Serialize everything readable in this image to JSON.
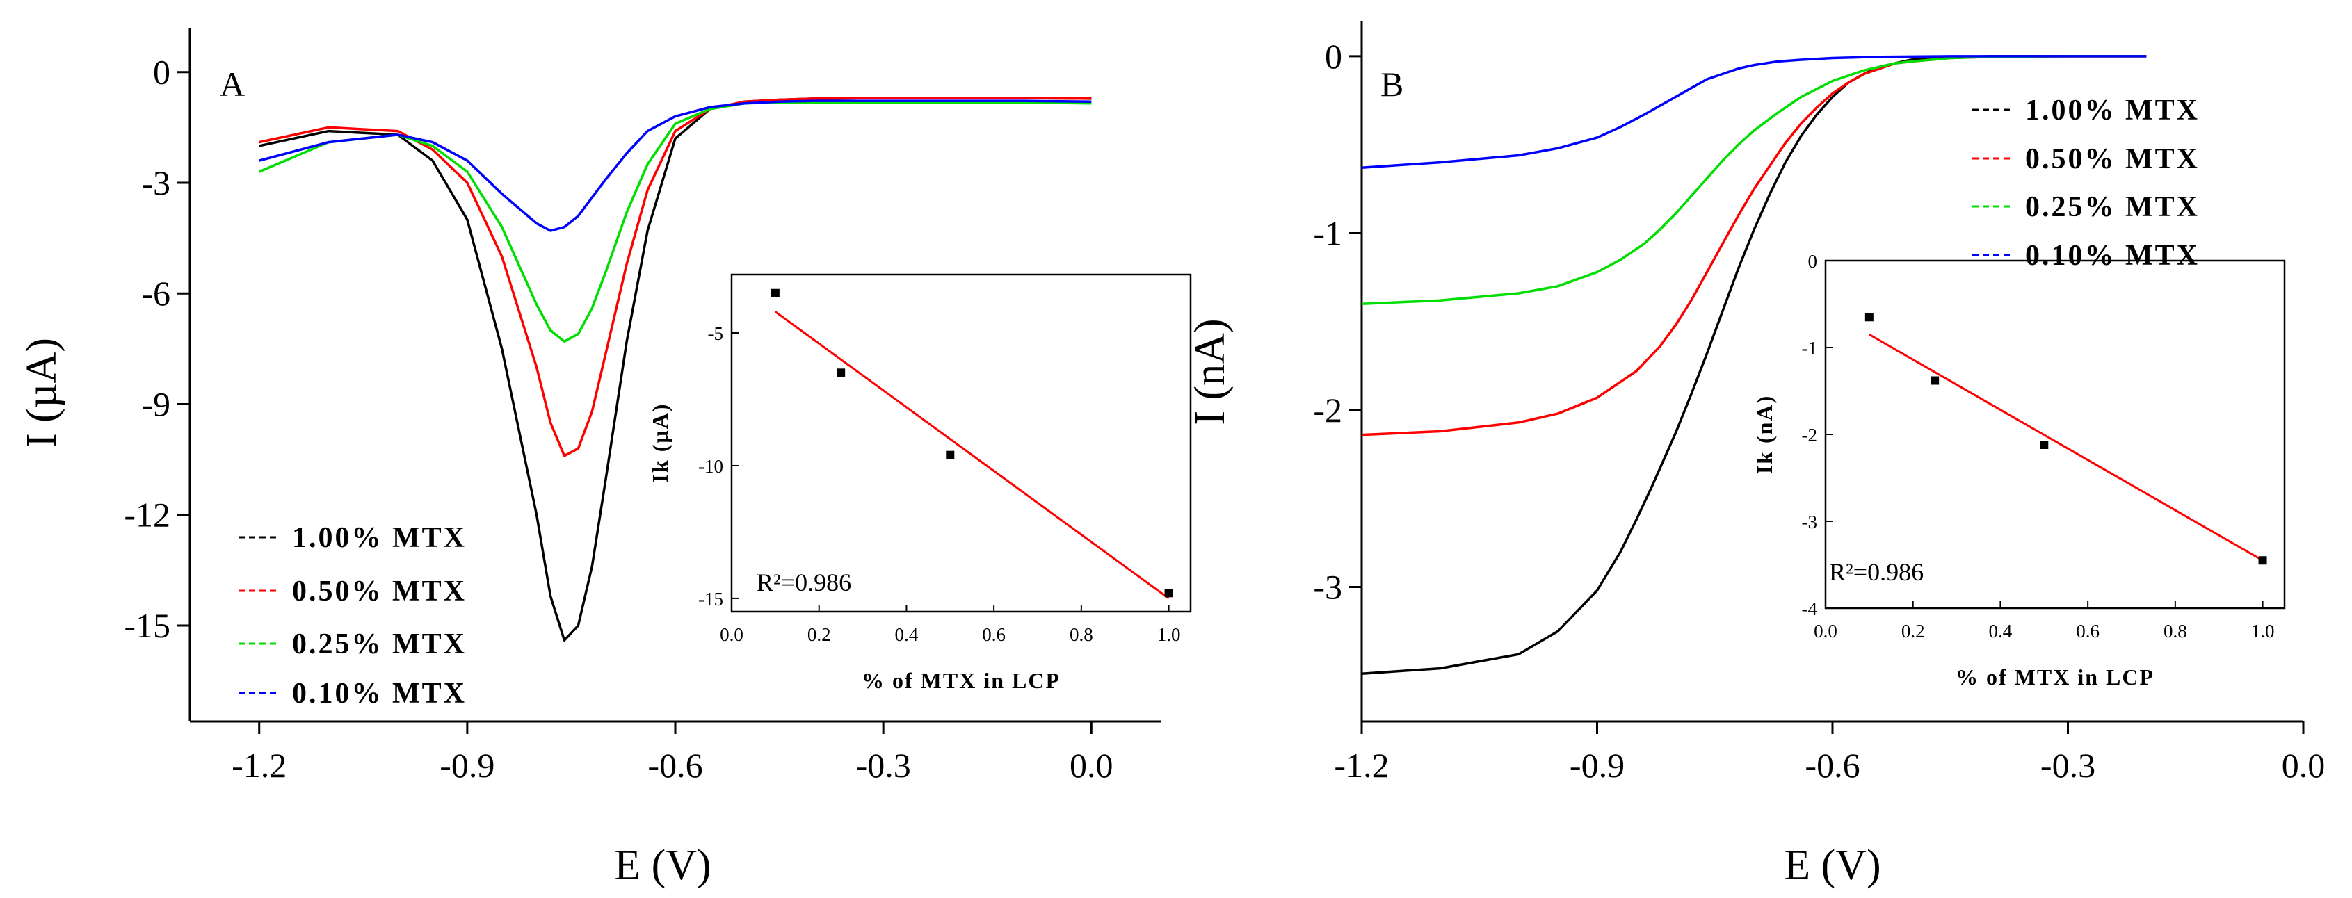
{
  "chart_data": [
    {
      "panel": "A",
      "type": "line",
      "xlabel": "E (V)",
      "ylabel": "I (µA)",
      "xlim": [
        -1.3,
        0.1
      ],
      "ylim": [
        -17.6,
        1.2
      ],
      "x_ticks": [
        -1.2,
        -0.9,
        -0.6,
        -0.3,
        0.0
      ],
      "x_tick_labels": [
        "-1.2",
        "-0.9",
        "-0.6",
        "-0.3",
        "0.0"
      ],
      "y_ticks": [
        0,
        -3,
        -6,
        -9,
        -12,
        -15
      ],
      "y_tick_labels": [
        "0",
        "-3",
        "-6",
        "-9",
        "-12",
        "-15"
      ],
      "legend_position": "bottom-left",
      "series": [
        {
          "name": "1.00% MTX",
          "color": "#000000",
          "x": [
            -1.2,
            -1.1,
            -1.0,
            -0.95,
            -0.9,
            -0.85,
            -0.8,
            -0.78,
            -0.76,
            -0.74,
            -0.72,
            -0.7,
            -0.67,
            -0.64,
            -0.6,
            -0.55,
            -0.5,
            -0.45,
            -0.4,
            -0.3,
            -0.2,
            -0.1,
            0.0
          ],
          "values": [
            -2.0,
            -1.6,
            -1.7,
            -2.4,
            -4.0,
            -7.5,
            -12.0,
            -14.2,
            -15.4,
            -15.0,
            -13.4,
            -11.0,
            -7.3,
            -4.3,
            -1.8,
            -1.0,
            -0.8,
            -0.75,
            -0.72,
            -0.7,
            -0.7,
            -0.7,
            -0.72
          ]
        },
        {
          "name": "0.50% MTX",
          "color": "#ff0000",
          "x": [
            -1.2,
            -1.1,
            -1.0,
            -0.95,
            -0.9,
            -0.85,
            -0.8,
            -0.78,
            -0.76,
            -0.74,
            -0.72,
            -0.7,
            -0.67,
            -0.64,
            -0.6,
            -0.55,
            -0.5,
            -0.45,
            -0.4,
            -0.3,
            -0.2,
            -0.1,
            0.0
          ],
          "values": [
            -1.9,
            -1.5,
            -1.6,
            -2.1,
            -3.0,
            -5.0,
            -8.0,
            -9.5,
            -10.4,
            -10.2,
            -9.2,
            -7.6,
            -5.2,
            -3.2,
            -1.6,
            -1.0,
            -0.8,
            -0.75,
            -0.72,
            -0.7,
            -0.7,
            -0.7,
            -0.72
          ]
        },
        {
          "name": "0.25% MTX",
          "color": "#00dd00",
          "x": [
            -1.2,
            -1.1,
            -1.0,
            -0.95,
            -0.9,
            -0.85,
            -0.8,
            -0.78,
            -0.76,
            -0.74,
            -0.72,
            -0.7,
            -0.67,
            -0.64,
            -0.6,
            -0.55,
            -0.5,
            -0.45,
            -0.4,
            -0.3,
            -0.2,
            -0.1,
            0.0
          ],
          "values": [
            -2.7,
            -1.9,
            -1.7,
            -2.0,
            -2.7,
            -4.2,
            -6.3,
            -7.0,
            -7.3,
            -7.1,
            -6.4,
            -5.4,
            -3.8,
            -2.5,
            -1.4,
            -1.0,
            -0.85,
            -0.82,
            -0.82,
            -0.82,
            -0.82,
            -0.82,
            -0.85
          ]
        },
        {
          "name": "0.10% MTX",
          "color": "#0000ff",
          "x": [
            -1.2,
            -1.1,
            -1.0,
            -0.95,
            -0.9,
            -0.85,
            -0.8,
            -0.78,
            -0.76,
            -0.74,
            -0.72,
            -0.7,
            -0.67,
            -0.64,
            -0.6,
            -0.55,
            -0.5,
            -0.45,
            -0.4,
            -0.3,
            -0.2,
            -0.1,
            0.0
          ],
          "values": [
            -2.4,
            -1.9,
            -1.7,
            -1.9,
            -2.4,
            -3.3,
            -4.1,
            -4.3,
            -4.2,
            -3.9,
            -3.4,
            -2.9,
            -2.2,
            -1.6,
            -1.2,
            -0.95,
            -0.85,
            -0.8,
            -0.78,
            -0.78,
            -0.78,
            -0.78,
            -0.8
          ]
        }
      ],
      "inset": {
        "type": "scatter",
        "xlabel": "% of MTX in LCP",
        "ylabel": "Ik (µA)",
        "xlim": [
          0.0,
          1.05
        ],
        "ylim": [
          -15.5,
          -2.8
        ],
        "x_ticks": [
          0.0,
          0.2,
          0.4,
          0.6,
          0.8,
          1.0
        ],
        "x_tick_labels": [
          "0.0",
          "0.2",
          "0.4",
          "0.6",
          "0.8",
          "1.0"
        ],
        "y_ticks": [
          -5,
          -10,
          -15
        ],
        "y_tick_labels": [
          "-5",
          "-10",
          "-15"
        ],
        "points": {
          "x": [
            0.1,
            0.25,
            0.5,
            1.0
          ],
          "y": [
            -3.5,
            -6.5,
            -9.6,
            -14.8
          ]
        },
        "fit": {
          "x": [
            0.1,
            1.0
          ],
          "y": [
            -4.2,
            -15.0
          ],
          "color": "#ff0000"
        },
        "annotation": "R²=0.986"
      }
    },
    {
      "panel": "B",
      "type": "line",
      "xlabel": "E (V)",
      "ylabel": "I (nA)",
      "xlim": [
        -1.2,
        0.0
      ],
      "ylim": [
        -3.76,
        0.2
      ],
      "x_ticks": [
        -1.2,
        -0.9,
        -0.6,
        -0.3,
        0.0
      ],
      "x_tick_labels": [
        "-1.2",
        "-0.9",
        "-0.6",
        "-0.3",
        "0.0"
      ],
      "y_ticks": [
        0,
        -1,
        -2,
        -3
      ],
      "y_tick_labels": [
        "0",
        "-1",
        "-2",
        "-3"
      ],
      "legend_position": "top-right",
      "series": [
        {
          "name": "1.00% MTX",
          "color": "#000000",
          "x": [
            -1.2,
            -1.1,
            -1.0,
            -0.95,
            -0.9,
            -0.87,
            -0.85,
            -0.83,
            -0.8,
            -0.78,
            -0.76,
            -0.74,
            -0.72,
            -0.7,
            -0.68,
            -0.66,
            -0.64,
            -0.62,
            -0.6,
            -0.58,
            -0.56,
            -0.54,
            -0.52,
            -0.5,
            -0.45,
            -0.4,
            -0.3,
            -0.2
          ],
          "values": [
            -3.49,
            -3.46,
            -3.38,
            -3.25,
            -3.02,
            -2.8,
            -2.62,
            -2.43,
            -2.13,
            -1.91,
            -1.68,
            -1.44,
            -1.2,
            -0.98,
            -0.78,
            -0.6,
            -0.45,
            -0.33,
            -0.23,
            -0.15,
            -0.1,
            -0.06,
            -0.04,
            -0.02,
            -0.005,
            0.0,
            0.0,
            0.0
          ]
        },
        {
          "name": "0.50% MTX",
          "color": "#ff0000",
          "x": [
            -1.2,
            -1.1,
            -1.0,
            -0.95,
            -0.9,
            -0.85,
            -0.82,
            -0.8,
            -0.78,
            -0.76,
            -0.74,
            -0.72,
            -0.7,
            -0.68,
            -0.66,
            -0.64,
            -0.62,
            -0.6,
            -0.58,
            -0.56,
            -0.54,
            -0.52,
            -0.5,
            -0.45,
            -0.4,
            -0.3,
            -0.2
          ],
          "values": [
            -2.14,
            -2.12,
            -2.07,
            -2.02,
            -1.93,
            -1.78,
            -1.64,
            -1.52,
            -1.38,
            -1.22,
            -1.06,
            -0.9,
            -0.75,
            -0.62,
            -0.49,
            -0.38,
            -0.29,
            -0.21,
            -0.15,
            -0.1,
            -0.07,
            -0.04,
            -0.03,
            -0.01,
            -0.003,
            0.0,
            0.0
          ]
        },
        {
          "name": "0.25% MTX",
          "color": "#00dd00",
          "x": [
            -1.2,
            -1.1,
            -1.0,
            -0.95,
            -0.9,
            -0.87,
            -0.84,
            -0.82,
            -0.8,
            -0.78,
            -0.76,
            -0.74,
            -0.72,
            -0.7,
            -0.67,
            -0.64,
            -0.6,
            -0.56,
            -0.52,
            -0.5,
            -0.45,
            -0.4,
            -0.3,
            -0.2
          ],
          "values": [
            -1.4,
            -1.38,
            -1.34,
            -1.3,
            -1.22,
            -1.15,
            -1.06,
            -0.98,
            -0.89,
            -0.79,
            -0.69,
            -0.59,
            -0.5,
            -0.42,
            -0.32,
            -0.23,
            -0.14,
            -0.08,
            -0.04,
            -0.03,
            -0.01,
            -0.003,
            0.0,
            0.0
          ]
        },
        {
          "name": "0.10% MTX",
          "color": "#0000ff",
          "x": [
            -1.2,
            -1.1,
            -1.0,
            -0.95,
            -0.9,
            -0.87,
            -0.84,
            -0.82,
            -0.8,
            -0.78,
            -0.76,
            -0.74,
            -0.72,
            -0.7,
            -0.67,
            -0.64,
            -0.6,
            -0.55,
            -0.5,
            -0.45,
            -0.4,
            -0.3,
            -0.2
          ],
          "values": [
            -0.63,
            -0.6,
            -0.56,
            -0.52,
            -0.46,
            -0.4,
            -0.33,
            -0.28,
            -0.23,
            -0.18,
            -0.13,
            -0.1,
            -0.07,
            -0.05,
            -0.03,
            -0.02,
            -0.01,
            -0.004,
            -0.002,
            0.0,
            0.0,
            0.0,
            0.0
          ]
        }
      ],
      "inset": {
        "type": "scatter",
        "xlabel": "% of MTX in LCP",
        "ylabel": "Ik (nA)",
        "xlim": [
          0.0,
          1.05
        ],
        "ylim": [
          -4.0,
          0.0
        ],
        "x_ticks": [
          0.0,
          0.2,
          0.4,
          0.6,
          0.8,
          1.0
        ],
        "x_tick_labels": [
          "0.0",
          "0.2",
          "0.4",
          "0.6",
          "0.8",
          "1.0"
        ],
        "y_ticks": [
          0,
          -1,
          -2,
          -3,
          -4
        ],
        "y_tick_labels": [
          "0",
          "-1",
          "-2",
          "-3",
          "-4"
        ],
        "points": {
          "x": [
            0.1,
            0.25,
            0.5,
            1.0
          ],
          "y": [
            -0.65,
            -1.38,
            -2.12,
            -3.45
          ]
        },
        "fit": {
          "x": [
            0.1,
            1.0
          ],
          "y": [
            -0.85,
            -3.45
          ],
          "color": "#ff0000"
        },
        "annotation": "R²=0.986"
      }
    }
  ]
}
